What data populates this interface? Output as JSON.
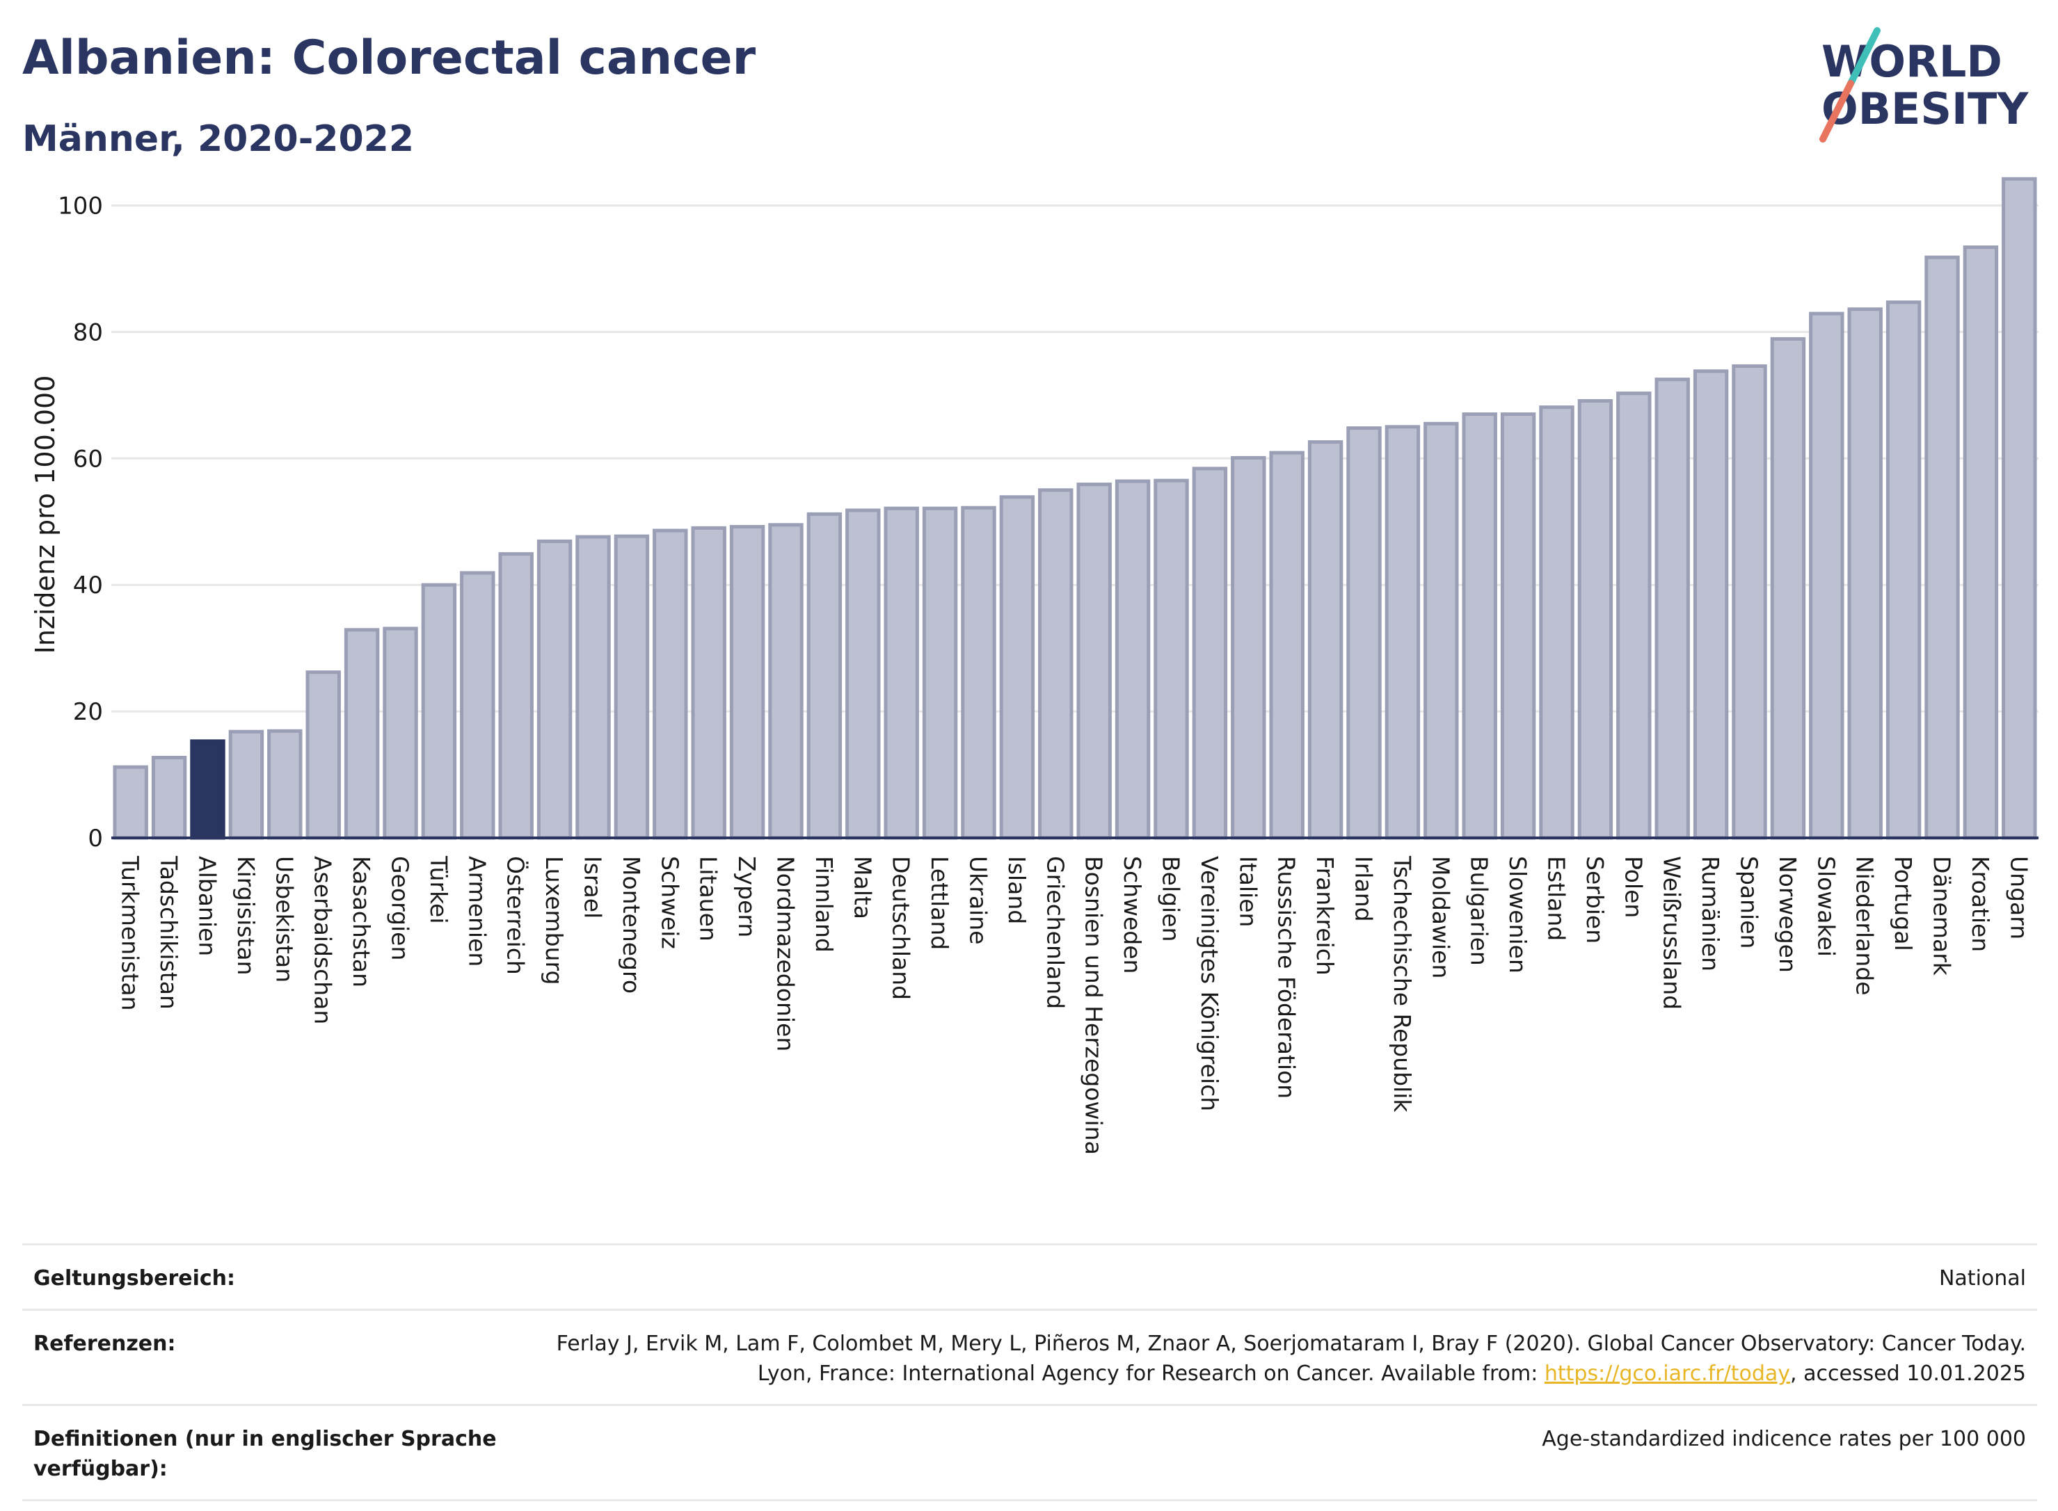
{
  "header": {
    "title": "Albanien: Colorectal cancer",
    "subtitle": "Männer, 2020-2022"
  },
  "logo": {
    "line1": "WORLD",
    "line2": "OBESITY"
  },
  "colors": {
    "bar": "#bdc0d0",
    "bar_stroke": "#9a9fb6",
    "highlight": "#2b3561",
    "grid": "#e6e6e6",
    "axis": "#2b3561"
  },
  "chart_data": {
    "type": "bar",
    "ylabel": "Inzidenz pro 100.000",
    "ylim": [
      0,
      105
    ],
    "yticks": [
      0,
      20,
      40,
      60,
      80,
      100
    ],
    "grid": true,
    "highlight": "Albanien",
    "categories": [
      "Turkmenistan",
      "Tadschikistan",
      "Albanien",
      "Kirgisistan",
      "Usbekistan",
      "Aserbaidschan",
      "Kasachstan",
      "Georgien",
      "Türkei",
      "Armenien",
      "Österreich",
      "Luxemburg",
      "Israel",
      "Montenegro",
      "Schweiz",
      "Litauen",
      "Zypern",
      "Nordmazedonien",
      "Finnland",
      "Malta",
      "Deutschland",
      "Lettland",
      "Ukraine",
      "Island",
      "Griechenland",
      "Bosnien und Herzegowina",
      "Schweden",
      "Belgien",
      "Vereinigtes Königreich",
      "Italien",
      "Russische Föderation",
      "Frankreich",
      "Irland",
      "Tschechische Republik",
      "Moldawien",
      "Bulgarien",
      "Slowenien",
      "Estland",
      "Serbien",
      "Polen",
      "Weißrussland",
      "Rumänien",
      "Spanien",
      "Norwegen",
      "Slowakei",
      "Niederlande",
      "Portugal",
      "Dänemark",
      "Kroatien",
      "Ungarn"
    ],
    "values": [
      11.2,
      12.7,
      15.3,
      16.8,
      16.9,
      26.2,
      32.9,
      33.1,
      40.0,
      41.9,
      44.9,
      46.9,
      47.6,
      47.7,
      48.6,
      49.0,
      49.2,
      49.5,
      51.2,
      51.8,
      52.1,
      52.1,
      52.2,
      53.9,
      55.0,
      55.9,
      56.4,
      56.5,
      58.4,
      60.1,
      60.9,
      62.6,
      64.8,
      65.0,
      65.5,
      67.0,
      67.0,
      68.1,
      69.1,
      70.3,
      72.5,
      73.8,
      74.6,
      78.9,
      82.9,
      83.6,
      84.7,
      91.8,
      93.4,
      104.2
    ]
  },
  "info": {
    "rows": [
      {
        "label": "Geltungsbereich:",
        "value": "National"
      },
      {
        "label": "Referenzen:",
        "value_pre": "Ferlay J, Ervik M, Lam F, Colombet M, Mery L, Piñeros M, Znaor A, Soerjomataram I, Bray F (2020). Global Cancer Observatory: Cancer Today. Lyon, France: International Agency for Research on Cancer. Available from: ",
        "link": "https://gco.iarc.fr/today",
        "value_post": ", accessed 10.01.2025"
      },
      {
        "label": "Definitionen (nur in englischer Sprache verfügbar):",
        "value": "Age-standardized indicence rates per 100 000"
      }
    ]
  }
}
